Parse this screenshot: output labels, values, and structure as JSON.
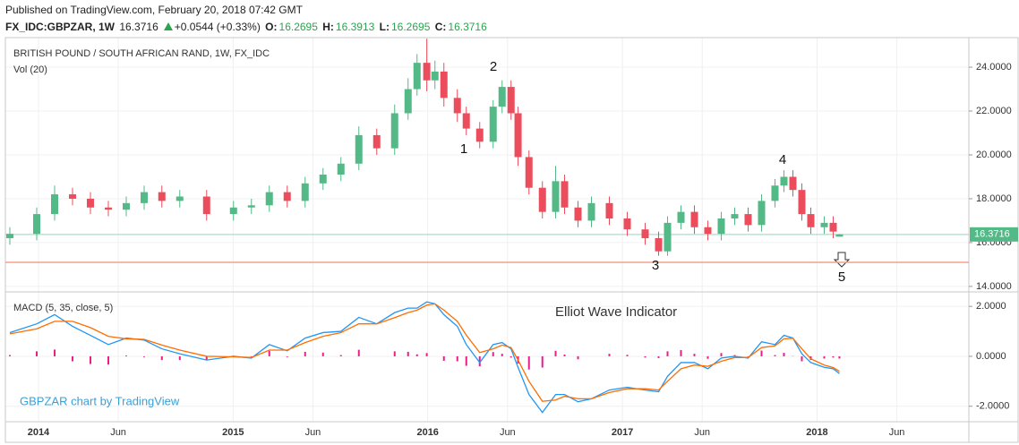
{
  "header": {
    "published": "Published on TradingView.com, February 20, 2018 07:42 GMT",
    "symbol": "FX_IDC:GBPZAR, 1W",
    "change": "+0.0544 (+0.33%)",
    "labels": [
      "O:",
      "H:",
      "L:",
      "C:"
    ]
  },
  "chart_data": [
    {
      "type": "candlestick",
      "title": "BRITISH POUND / SOUTH AFRICAN RAND, 1W, FX_IDC",
      "subtitle": "Vol (20)",
      "up_color": "#53b987",
      "down_color": "#eb4d5c",
      "last_line_color": "#8fd9b6",
      "x": [
        2013.853,
        2013.991,
        2014.083,
        2014.175,
        2014.267,
        2014.359,
        2014.451,
        2014.543,
        2014.634,
        2014.726,
        2014.864,
        2015.002,
        2015.094,
        2015.186,
        2015.278,
        2015.37,
        2015.462,
        2015.554,
        2015.646,
        2015.738,
        2015.83,
        2015.899,
        2015.945,
        2015.995,
        2016.037,
        2016.083,
        2016.152,
        2016.198,
        2016.267,
        2016.336,
        2016.382,
        2016.428,
        2016.464,
        2016.52,
        2016.589,
        2016.657,
        2016.703,
        2016.772,
        2016.841,
        2016.933,
        2017.025,
        2017.117,
        2017.186,
        2017.232,
        2017.301,
        2017.37,
        2017.439,
        2017.508,
        2017.577,
        2017.646,
        2017.715,
        2017.784,
        2017.83,
        2017.876,
        2017.922,
        2017.968,
        2018.037,
        2018.083,
        2018.115
      ],
      "open": [
        16.2,
        16.4,
        17.3,
        18.2,
        18.0,
        17.6,
        17.5,
        17.8,
        18.3,
        17.9,
        18.1,
        17.3,
        17.6,
        17.7,
        18.3,
        17.9,
        18.7,
        19.1,
        19.6,
        20.9,
        20.3,
        21.9,
        23.0,
        24.2,
        23.4,
        23.8,
        22.6,
        21.9,
        21.2,
        20.6,
        22.2,
        23.1,
        21.9,
        19.9,
        18.5,
        17.4,
        18.8,
        17.6,
        17.0,
        17.8,
        17.1,
        16.6,
        16.2,
        15.6,
        16.9,
        17.4,
        16.7,
        16.4,
        17.1,
        17.3,
        16.8,
        17.9,
        18.6,
        19.0,
        18.4,
        17.3,
        16.7,
        16.9,
        16.2695
      ],
      "high": [
        16.7,
        17.6,
        18.6,
        18.5,
        18.3,
        17.9,
        18.1,
        18.6,
        18.6,
        18.4,
        18.4,
        17.9,
        18.0,
        18.6,
        18.6,
        19.0,
        19.4,
        19.9,
        21.3,
        21.2,
        22.3,
        23.5,
        24.6,
        25.3,
        24.3,
        24.2,
        23.0,
        22.2,
        21.5,
        22.5,
        23.4,
        23.4,
        22.2,
        20.2,
        18.8,
        19.5,
        19.1,
        17.9,
        18.1,
        18.1,
        17.4,
        16.9,
        16.5,
        17.2,
        17.7,
        17.7,
        17.0,
        17.4,
        17.6,
        17.6,
        18.2,
        18.9,
        19.3,
        19.3,
        18.7,
        17.6,
        17.2,
        17.2,
        16.3913
      ],
      "low": [
        15.9,
        16.1,
        17.0,
        17.7,
        17.3,
        17.2,
        17.2,
        17.5,
        17.6,
        17.6,
        17.0,
        17.0,
        17.3,
        17.4,
        17.6,
        17.6,
        18.4,
        18.8,
        19.3,
        20.0,
        20.0,
        21.6,
        22.7,
        22.9,
        23.0,
        22.2,
        21.5,
        20.9,
        20.3,
        20.3,
        21.9,
        21.6,
        19.5,
        18.2,
        17.1,
        17.1,
        17.3,
        16.7,
        16.7,
        16.8,
        16.3,
        15.9,
        15.4,
        15.4,
        16.6,
        16.4,
        16.1,
        16.1,
        16.8,
        16.5,
        16.5,
        17.6,
        18.3,
        18.1,
        17.0,
        16.4,
        16.4,
        16.2,
        16.2695
      ],
      "close": [
        16.4,
        17.3,
        18.2,
        18.0,
        17.6,
        17.5,
        17.8,
        18.3,
        17.9,
        18.1,
        17.3,
        17.6,
        17.7,
        18.3,
        17.9,
        18.7,
        19.1,
        19.6,
        20.9,
        20.3,
        21.9,
        23.0,
        24.2,
        23.4,
        23.8,
        22.6,
        21.9,
        21.2,
        20.6,
        22.2,
        23.1,
        21.9,
        19.9,
        18.5,
        17.4,
        18.8,
        17.6,
        17.0,
        17.8,
        17.1,
        16.6,
        16.2,
        15.6,
        16.9,
        17.4,
        16.7,
        16.4,
        17.1,
        17.3,
        16.8,
        17.9,
        18.6,
        19.0,
        18.4,
        17.3,
        16.7,
        16.9,
        16.5,
        16.3716
      ],
      "xlim": [
        2013.83,
        2018.78
      ],
      "ylim": [
        13.75,
        25.35
      ],
      "xticks": [
        2014,
        {
          "value": 2014.41,
          "label": "Jun"
        },
        2015,
        {
          "value": 2015.41,
          "label": "Jun"
        },
        2016,
        {
          "value": 2016.41,
          "label": "Jun"
        },
        2017,
        {
          "value": 2017.41,
          "label": "Jun"
        },
        2018,
        {
          "value": 2018.41,
          "label": "Jun"
        }
      ],
      "yticks": [
        {
          "value": 14,
          "label": "14.0000"
        },
        {
          "value": 16,
          "label": "16.0000"
        },
        {
          "value": 18,
          "label": "18.0000"
        },
        {
          "value": 20,
          "label": "20.0000"
        },
        {
          "value": 22,
          "label": "22.0000"
        },
        {
          "value": 24,
          "label": "24.0000"
        }
      ],
      "levels": [
        {
          "value": 15.1,
          "color": "#f4a28c"
        }
      ],
      "annotations": [
        "1",
        "2",
        "3",
        "4",
        "5"
      ],
      "grid": true
    },
    {
      "type": "macd",
      "title": "MACD (5, 35, close, 5)",
      "annotation": "Elliot Wave Indicator",
      "credit": "GBPZAR chart by TradingView",
      "line_series": [
        {
          "color": "#2196f3",
          "values": [
            0.95,
            1.3,
            1.67,
            1.2,
            0.84,
            0.47,
            0.73,
            0.65,
            0.3,
            0.1,
            -0.15,
            0,
            -0.07,
            0.47,
            0.22,
            0.73,
            0.95,
            1.0,
            1.56,
            1.3,
            1.75,
            1.93,
            1.93,
            2.18,
            2.1,
            1.67,
            1.2,
            0.47,
            -0.25,
            0.47,
            0.55,
            0.3,
            -0.44,
            -1.53,
            -2.25,
            -1.53,
            -1.53,
            -1.82,
            -1.7,
            -1.35,
            -1.24,
            -1.35,
            -1.42,
            -0.8,
            -0.25,
            -0.25,
            -0.5,
            -0.07,
            0,
            -0.07,
            0.58,
            0.47,
            0.84,
            0.73,
            0.1,
            -0.25,
            -0.44,
            -0.5,
            -0.69
          ]
        },
        {
          "color": "#ff6d00",
          "values": [
            0.9,
            1.1,
            1.4,
            1.4,
            1.15,
            0.8,
            0.7,
            0.68,
            0.45,
            0.25,
            0.0,
            -0.02,
            -0.05,
            0.25,
            0.25,
            0.55,
            0.8,
            0.95,
            1.3,
            1.3,
            1.55,
            1.75,
            1.85,
            2.05,
            2.1,
            1.85,
            1.4,
            0.85,
            0.15,
            0.3,
            0.45,
            0.35,
            -0.15,
            -1.0,
            -1.8,
            -1.75,
            -1.6,
            -1.7,
            -1.7,
            -1.45,
            -1.3,
            -1.3,
            -1.35,
            -1.0,
            -0.5,
            -0.35,
            -0.4,
            -0.2,
            -0.05,
            -0.05,
            0.35,
            0.42,
            0.7,
            0.72,
            0.3,
            -0.1,
            -0.35,
            -0.45,
            -0.6
          ]
        }
      ],
      "histogram": {
        "color": "#e91e8c",
        "values": [
          0.05,
          0.2,
          0.27,
          -0.2,
          -0.31,
          -0.33,
          0.03,
          -0.03,
          -0.15,
          -0.15,
          -0.15,
          0.02,
          -0.02,
          0.22,
          -0.03,
          0.18,
          0.15,
          0.05,
          0.26,
          0,
          0.2,
          0.18,
          0.08,
          0.13,
          0,
          -0.18,
          -0.2,
          -0.38,
          -0.4,
          0.17,
          0.1,
          -0.05,
          -0.29,
          -0.53,
          -0.45,
          0.22,
          0.07,
          -0.12,
          0,
          0.1,
          0.06,
          -0.05,
          -0.07,
          0.2,
          0.25,
          0.1,
          -0.1,
          0.13,
          0.05,
          -0.02,
          0.23,
          0.05,
          0.14,
          0.01,
          -0.2,
          -0.15,
          -0.09,
          -0.05,
          -0.09
        ]
      },
      "ylim": [
        -2.62,
        2.58
      ],
      "yticks": [
        {
          "value": -2,
          "label": "-2.0000"
        },
        {
          "value": 0,
          "label": "0.0000"
        },
        {
          "value": 2,
          "label": "2.0000"
        }
      ],
      "grid": true
    }
  ]
}
